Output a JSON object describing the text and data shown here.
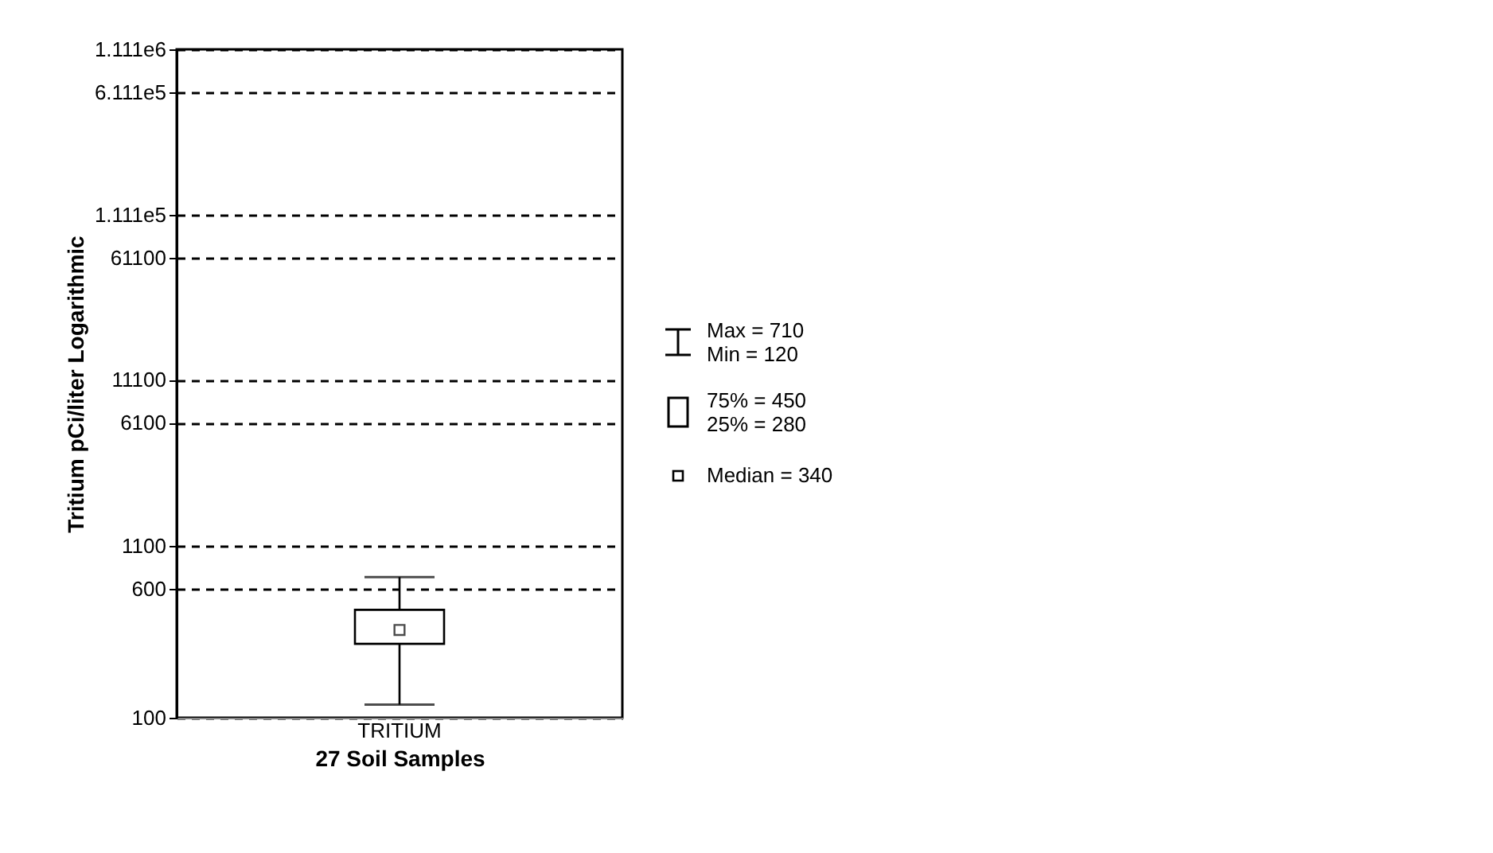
{
  "chart_data": {
    "type": "box",
    "categories": [
      "TRITIUM"
    ],
    "boxes": [
      {
        "low": 120,
        "q1": 280,
        "median": 340,
        "q3": 450,
        "high": 710
      }
    ],
    "xlabel": "27 Soil Samples",
    "ylabel": "Tritium pCi/liter Logarithmic",
    "log": "y",
    "ylim": [
      100,
      1111000
    ],
    "yticks": [
      {
        "value": 1111000,
        "label": "1.111e6"
      },
      {
        "value": 611100,
        "label": "6.111e5"
      },
      {
        "value": 111100,
        "label": "1.111e5"
      },
      61100,
      11100,
      6100,
      1100,
      600,
      100
    ],
    "grid": "y",
    "line_style": "dashed",
    "marker": "square",
    "annotations": [
      "Max = 710",
      "Min = 120",
      "75% = 450",
      "25% = 280",
      "Median = 340"
    ]
  }
}
